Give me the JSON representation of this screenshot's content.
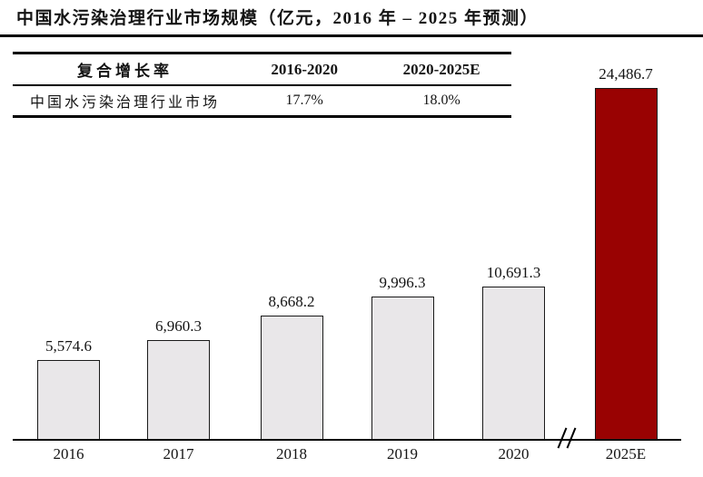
{
  "title": "中国水污染治理行业市场规模（亿元，2016 年 – 2025 年预测）",
  "cagr_table": {
    "headers": [
      "复合增长率",
      "2016-2020",
      "2020-2025E"
    ],
    "rows": [
      [
        "中国水污染治理行业市场",
        "17.7%",
        "18.0%"
      ]
    ]
  },
  "chart_data": {
    "type": "bar",
    "title": "中国水污染治理行业市场规模",
    "unit": "亿元",
    "categories": [
      "2016",
      "2017",
      "2018",
      "2019",
      "2020",
      "2025E"
    ],
    "values": [
      5574.6,
      6960.3,
      8668.2,
      9996.3,
      10691.3,
      24486.7
    ],
    "value_labels": [
      "5,574.6",
      "6,960.3",
      "8,668.2",
      "9,996.3",
      "10,691.3",
      "24,486.7"
    ],
    "ylim": [
      0,
      24486.7
    ],
    "grid": false,
    "legend": "none",
    "axis_break_after_index": 4,
    "highlight_index": 5,
    "bar_color": "#E9E7E9",
    "bar_border_color": "#1a1a1a",
    "highlight_color": "#990202"
  }
}
